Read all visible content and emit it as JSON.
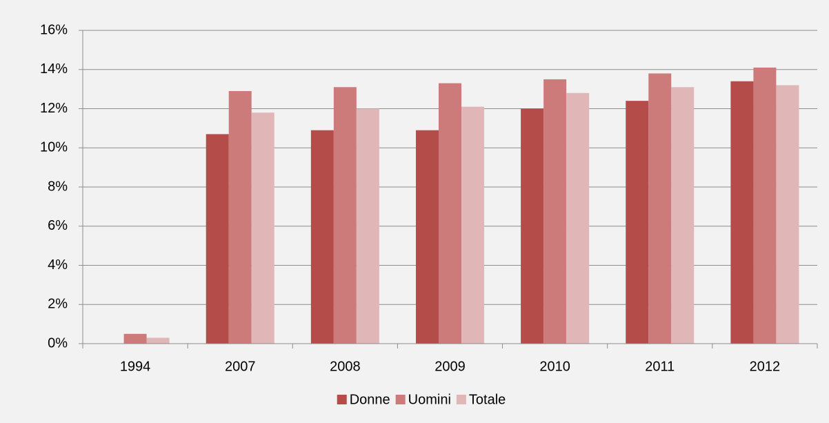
{
  "chart_data": {
    "type": "bar",
    "categories": [
      "1994",
      "2007",
      "2008",
      "2009",
      "2010",
      "2011",
      "2012"
    ],
    "series": [
      {
        "name": "Donne",
        "color": "#b44c4a",
        "values": [
          0,
          10.7,
          10.9,
          10.9,
          12.0,
          12.4,
          13.4
        ]
      },
      {
        "name": "Uomini",
        "color": "#cc7b7a",
        "values": [
          0.5,
          12.9,
          13.1,
          13.3,
          13.5,
          13.8,
          14.1
        ]
      },
      {
        "name": "Totale",
        "color": "#e0b6b6",
        "values": [
          0.3,
          11.8,
          12.0,
          12.1,
          12.8,
          13.1,
          13.2
        ]
      }
    ],
    "ylim": [
      0,
      16
    ],
    "yticks": [
      {
        "value": 0,
        "label": "0%"
      },
      {
        "value": 2,
        "label": "2%"
      },
      {
        "value": 4,
        "label": "4%"
      },
      {
        "value": 6,
        "label": "6%"
      },
      {
        "value": 8,
        "label": "8%"
      },
      {
        "value": 10,
        "label": "10%"
      },
      {
        "value": 12,
        "label": "12%"
      },
      {
        "value": 14,
        "label": "14%"
      },
      {
        "value": 16,
        "label": "16%"
      }
    ],
    "grid": true,
    "legend": "bottom"
  }
}
